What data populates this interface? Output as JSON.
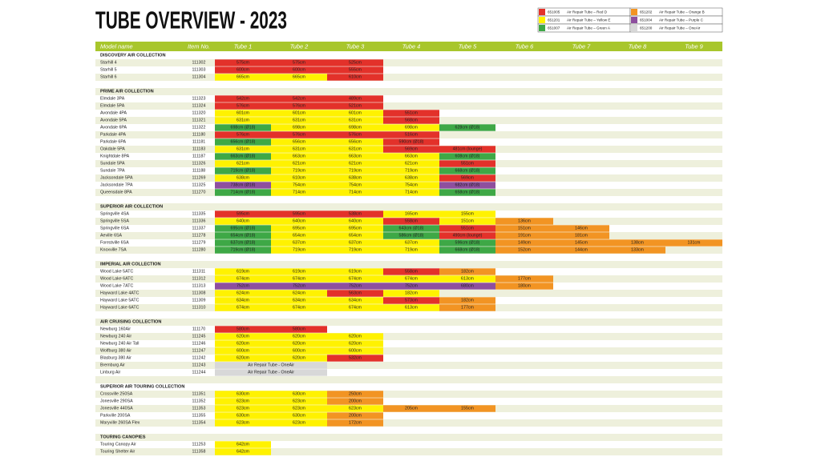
{
  "header": {
    "title": "TUBE OVERVIEW - 2023"
  },
  "colors": {
    "red": "#e3312a",
    "yellow": "#fff200",
    "green": "#3ea846",
    "orange": "#f29423",
    "purple": "#8e4f9e",
    "grey": "#d8d8d8"
  },
  "legend": [
    {
      "code": "651005",
      "label": "Air Repair Tube – Red D",
      "color": "red"
    },
    {
      "code": "651201",
      "label": "Air Repair Tube – Yellow E",
      "color": "yellow"
    },
    {
      "code": "651007",
      "label": "Air Repair Tube – Green A",
      "color": "green"
    },
    {
      "code": "651202",
      "label": "Air Repair Tube – Orange B",
      "color": "orange"
    },
    {
      "code": "651004",
      "label": "Air Repair Tube – Purple C",
      "color": "purple"
    },
    {
      "code": "651200",
      "label": "Air Repair Tube – OneAir",
      "color": "grey"
    }
  ],
  "table": {
    "columns": [
      "Model name",
      "Item No.",
      "Tube 1",
      "Tube 2",
      "Tube 3",
      "Tube 4",
      "Tube 5",
      "Tube 6",
      "Tube 7",
      "Tube 8",
      "Tube 9"
    ],
    "sections": [
      {
        "title": "DISCOVERY AIR COLLECTION",
        "rows": [
          {
            "name": "Starhill 4",
            "item": "111302",
            "tubes": [
              "575cm",
              "575cm",
              "525cm"
            ],
            "colors": [
              "red",
              "red",
              "red"
            ]
          },
          {
            "name": "Starhill 5",
            "item": "111303",
            "tubes": [
              "600cm",
              "600cm",
              "555cm"
            ],
            "colors": [
              "red",
              "red",
              "red"
            ]
          },
          {
            "name": "Starhill 6",
            "item": "111304",
            "tubes": [
              "665cm",
              "665cm",
              "610cm"
            ],
            "colors": [
              "yellow",
              "yellow",
              "red"
            ]
          }
        ]
      },
      {
        "title": "PRIME AIR COLLECTION",
        "rows": [
          {
            "name": "Elmdale 3PA",
            "item": "111323",
            "tubes": [
              "542cm",
              "542cm",
              "489cm"
            ],
            "colors": [
              "red",
              "red",
              "red"
            ]
          },
          {
            "name": "Elmdale 5PA",
            "item": "111324",
            "tubes": [
              "576cm",
              "576cm",
              "521cm"
            ],
            "colors": [
              "red",
              "red",
              "red"
            ]
          },
          {
            "name": "Avondale 4PA",
            "item": "111320",
            "tubes": [
              "601cm",
              "601cm",
              "601cm",
              "551cm"
            ],
            "colors": [
              "yellow",
              "yellow",
              "yellow",
              "red"
            ]
          },
          {
            "name": "Avondale 5PA",
            "item": "111321",
            "tubes": [
              "631cm",
              "631cm",
              "631cm",
              "568cm"
            ],
            "colors": [
              "yellow",
              "yellow",
              "yellow",
              "red"
            ]
          },
          {
            "name": "Avondale 6PA",
            "item": "111322",
            "tubes": [
              "698cm (Ø18)",
              "698cm",
              "698cm",
              "698cm",
              "628cm (Ø18)"
            ],
            "colors": [
              "green",
              "yellow",
              "yellow",
              "yellow",
              "green"
            ]
          },
          {
            "name": "Parkdale 4PA",
            "item": "111180",
            "tubes": [
              "576cm",
              "576cm",
              "576cm",
              "516cm"
            ],
            "colors": [
              "red",
              "red",
              "red",
              "red"
            ]
          },
          {
            "name": "Parkdale 6PA",
            "item": "111181",
            "tubes": [
              "656cm (Ø18)",
              "656cm",
              "656cm",
              "590cm (Ø18)"
            ],
            "colors": [
              "green",
              "yellow",
              "yellow",
              "red"
            ]
          },
          {
            "name": "Oakdale 5PA",
            "item": "111183",
            "tubes": [
              "631cm",
              "631cm",
              "631cm",
              "569cm",
              "481cm (lounge)"
            ],
            "colors": [
              "yellow",
              "yellow",
              "yellow",
              "red",
              "red"
            ]
          },
          {
            "name": "Knightdale 8PA",
            "item": "111187",
            "tubes": [
              "663cm (Ø18)",
              "663cm",
              "663cm",
              "663cm",
              "608cm (Ø18)"
            ],
            "colors": [
              "green",
              "yellow",
              "yellow",
              "yellow",
              "green"
            ]
          },
          {
            "name": "Sundale 5PA",
            "item": "111326",
            "tubes": [
              "621cm",
              "621cm",
              "621cm",
              "621cm",
              "551cm"
            ],
            "colors": [
              "yellow",
              "yellow",
              "yellow",
              "yellow",
              "red"
            ]
          },
          {
            "name": "Sundale 7PA",
            "item": "111188",
            "tubes": [
              "719cm (Ø18)",
              "719cm",
              "719cm",
              "719cm",
              "668cm (Ø18)"
            ],
            "colors": [
              "green",
              "yellow",
              "yellow",
              "yellow",
              "green"
            ]
          },
          {
            "name": "Jacksondale 5PA",
            "item": "111269",
            "tubes": [
              "638cm",
              "610cm",
              "638cm",
              "638cm",
              "569cm"
            ],
            "colors": [
              "yellow",
              "yellow",
              "yellow",
              "yellow",
              "red"
            ]
          },
          {
            "name": "Jacksondale 7PA",
            "item": "111325",
            "tubes": [
              "738cm (Ø18)",
              "754cm",
              "754cm",
              "754cm",
              "682cm (Ø18)"
            ],
            "colors": [
              "purple",
              "yellow",
              "yellow",
              "yellow",
              "purple"
            ]
          },
          {
            "name": "Queensdale 8PA",
            "item": "111270",
            "tubes": [
              "714cm (Ø18)",
              "714cm",
              "714cm",
              "714cm",
              "658cm (Ø18)"
            ],
            "colors": [
              "green",
              "yellow",
              "yellow",
              "yellow",
              "green"
            ]
          }
        ]
      },
      {
        "title": "SUPERIOR AIR COLLECTION",
        "rows": [
          {
            "name": "Springville 4SA",
            "item": "111335",
            "tubes": [
              "595cm",
              "595cm",
              "538cm",
              "165cm",
              "155cm"
            ],
            "colors": [
              "red",
              "red",
              "red",
              "yellow",
              "yellow"
            ]
          },
          {
            "name": "Springville 5SA",
            "item": "111336",
            "tubes": [
              "640cm",
              "640cm",
              "640cm",
              "558cm",
              "151cm",
              "136cm"
            ],
            "colors": [
              "yellow",
              "yellow",
              "yellow",
              "red",
              "yellow",
              "orange"
            ]
          },
          {
            "name": "Springville 6SA",
            "item": "111337",
            "tubes": [
              "695cm (Ø18)",
              "695cm",
              "695cm",
              "643cm (Ø18)",
              "551cm",
              "151cm",
              "146cm"
            ],
            "colors": [
              "green",
              "yellow",
              "yellow",
              "green",
              "red",
              "orange",
              "orange"
            ]
          },
          {
            "name": "Aeville 6SA",
            "item": "111278",
            "tubes": [
              "654cm (Ø18)",
              "654cm",
              "654cm",
              "586cm (Ø18)",
              "490cm (lounge)",
              "191cm",
              "181cm"
            ],
            "colors": [
              "green",
              "yellow",
              "yellow",
              "green",
              "red",
              "orange",
              "orange"
            ]
          },
          {
            "name": "Forestville 6SA",
            "item": "111279",
            "tubes": [
              "637cm (Ø18)",
              "637cm",
              "637cm",
              "637cm",
              "596cm (Ø18)",
              "149cm",
              "145cm",
              "138cm",
              "131cm"
            ],
            "colors": [
              "green",
              "yellow",
              "yellow",
              "yellow",
              "green",
              "orange",
              "orange",
              "orange",
              "orange"
            ]
          },
          {
            "name": "Knoxville 7SA",
            "item": "111280",
            "tubes": [
              "719cm (Ø18)",
              "719cm",
              "719cm",
              "719cm",
              "668cm (Ø18)",
              "152cm",
              "144cm",
              "133cm"
            ],
            "colors": [
              "green",
              "yellow",
              "yellow",
              "yellow",
              "green",
              "orange",
              "orange",
              "orange"
            ]
          }
        ]
      },
      {
        "title": "IMPERIAL AIR COLLECTION",
        "rows": [
          {
            "name": "Wood Lake 5ATC",
            "item": "111311",
            "tubes": [
              "619cm",
              "619cm",
              "619cm",
              "558cm",
              "182cm"
            ],
            "colors": [
              "yellow",
              "yellow",
              "yellow",
              "red",
              "orange"
            ]
          },
          {
            "name": "Wood Lake 6ATC",
            "item": "111312",
            "tubes": [
              "674cm",
              "674cm",
              "674cm",
              "674cm",
              "613cm",
              "177cm"
            ],
            "colors": [
              "yellow",
              "yellow",
              "yellow",
              "yellow",
              "yellow",
              "orange"
            ]
          },
          {
            "name": "Wood Lake 7ATC",
            "item": "111313",
            "tubes": [
              "752cm",
              "752cm",
              "752cm",
              "752cm",
              "680cm",
              "180cm"
            ],
            "colors": [
              "purple",
              "purple",
              "purple",
              "purple",
              "purple",
              "orange"
            ]
          },
          {
            "name": "Hayward Lake 4ATC",
            "item": "111308",
            "tubes": [
              "624cm",
              "624cm",
              "563cm",
              "182cm"
            ],
            "colors": [
              "yellow",
              "yellow",
              "red",
              "yellow"
            ]
          },
          {
            "name": "Hayward Lake 5ATC",
            "item": "111309",
            "tubes": [
              "634cm",
              "634cm",
              "634cm",
              "573cm",
              "182cm"
            ],
            "colors": [
              "yellow",
              "yellow",
              "yellow",
              "red",
              "orange"
            ]
          },
          {
            "name": "Hayward Lake 6ATC",
            "item": "111310",
            "tubes": [
              "674cm",
              "674cm",
              "674cm",
              "613cm",
              "177cm"
            ],
            "colors": [
              "yellow",
              "yellow",
              "yellow",
              "yellow",
              "orange"
            ]
          }
        ]
      },
      {
        "title": "AIR CRUISING COLLECTION",
        "rows": [
          {
            "name": "Newburg 160Air",
            "item": "111170",
            "tubes": [
              "580cm",
              "580cm"
            ],
            "colors": [
              "red",
              "red"
            ]
          },
          {
            "name": "Newburg 240 Air",
            "item": "111245",
            "tubes": [
              "620cm",
              "620cm",
              "620cm"
            ],
            "colors": [
              "yellow",
              "yellow",
              "yellow"
            ]
          },
          {
            "name": "Newburg 240 Air Tall",
            "item": "111246",
            "tubes": [
              "620cm",
              "620cm",
              "620cm"
            ],
            "colors": [
              "yellow",
              "yellow",
              "yellow"
            ]
          },
          {
            "name": "Wolfburg 380 Air",
            "item": "111247",
            "tubes": [
              "600cm",
              "600cm",
              "600cm"
            ],
            "colors": [
              "yellow",
              "yellow",
              "yellow"
            ]
          },
          {
            "name": "Blasburg 380 Air",
            "item": "111242",
            "tubes": [
              "620cm",
              "620cm",
              "532cm"
            ],
            "colors": [
              "yellow",
              "yellow",
              "red"
            ]
          },
          {
            "name": "Bremburg Air",
            "item": "111243",
            "tubes": [
              "Air Repair Tube - OneAir",
              null
            ],
            "colors": [
              "grey",
              "grey"
            ]
          },
          {
            "name": "Linburg Air",
            "item": "111244",
            "tubes": [
              "Air Repair Tube - OneAir",
              null
            ],
            "colors": [
              "grey",
              "grey"
            ]
          }
        ]
      },
      {
        "title": "SUPERIOR AIR TOURING COLLECTION",
        "rows": [
          {
            "name": "Crossville 250SA",
            "item": "111351",
            "tubes": [
              "630cm",
              "630cm",
              "250cm"
            ],
            "colors": [
              "yellow",
              "yellow",
              "orange"
            ]
          },
          {
            "name": "Jonesville 290SA",
            "item": "111352",
            "tubes": [
              "623cm",
              "623cm",
              "200cm"
            ],
            "colors": [
              "yellow",
              "yellow",
              "orange"
            ]
          },
          {
            "name": "Jonesville 440SA",
            "item": "111353",
            "tubes": [
              "623cm",
              "623cm",
              "623cm",
              "205cm",
              "155cm"
            ],
            "colors": [
              "yellow",
              "yellow",
              "yellow",
              "orange",
              "orange"
            ]
          },
          {
            "name": "Parkville 200SA",
            "item": "111355",
            "tubes": [
              "630cm",
              "630cm",
              "200cm"
            ],
            "colors": [
              "yellow",
              "yellow",
              "orange"
            ]
          },
          {
            "name": "Maryville 260SA Flex",
            "item": "111354",
            "tubes": [
              "623cm",
              "623cm",
              "172cm"
            ],
            "colors": [
              "yellow",
              "yellow",
              "orange"
            ]
          }
        ]
      },
      {
        "title": "TOURING CANOPIES",
        "rows": [
          {
            "name": "Touring Canopy Air",
            "item": "111253",
            "tubes": [
              "642cm"
            ],
            "colors": [
              "yellow"
            ]
          },
          {
            "name": "Touring Shelter Air",
            "item": "111358",
            "tubes": [
              "642cm"
            ],
            "colors": [
              "yellow"
            ]
          }
        ]
      }
    ]
  }
}
